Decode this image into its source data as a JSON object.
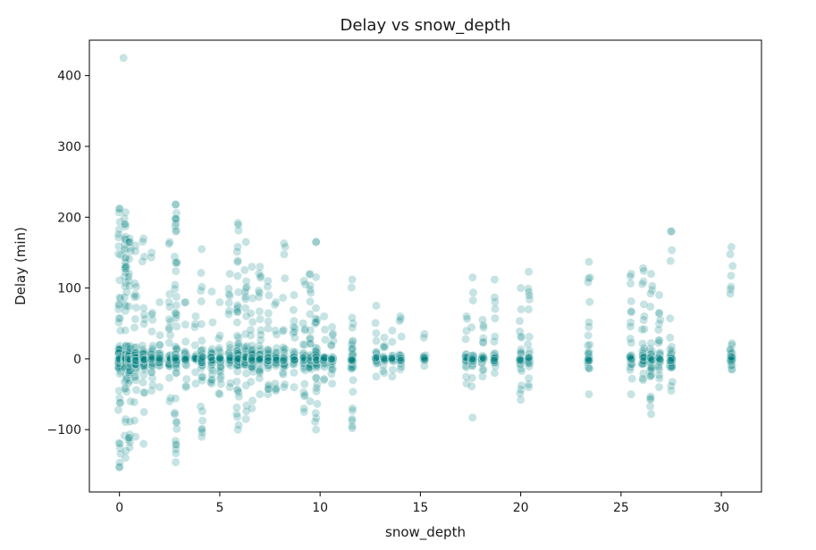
{
  "chart_data": {
    "type": "scatter",
    "title": "Delay vs snow_depth",
    "xlabel": "snow_depth",
    "ylabel": "Delay (min)",
    "xlim": [
      -1.5,
      32.0
    ],
    "ylim": [
      -188,
      450
    ],
    "xticks": [
      0,
      5,
      10,
      15,
      20,
      25,
      30
    ],
    "yticks": [
      -100,
      0,
      100,
      200,
      300,
      400
    ],
    "tick_labels_x": [
      "0",
      "5",
      "10",
      "15",
      "20",
      "25",
      "30"
    ],
    "tick_labels_y": [
      "−100",
      "0",
      "100",
      "200",
      "300",
      "400"
    ],
    "grid": false,
    "marker_color": "#00807f",
    "marker_alpha": 0.22,
    "columns": [
      {
        "x": 0.0,
        "min": -153,
        "max": 212,
        "n": 90
      },
      {
        "x": 0.3,
        "min": -140,
        "max": 207,
        "n": 70
      },
      {
        "x": 0.5,
        "min": -125,
        "max": 170,
        "n": 55
      },
      {
        "x": 0.8,
        "min": -110,
        "max": 160,
        "n": 45
      },
      {
        "x": 1.2,
        "min": -120,
        "max": 170,
        "n": 45
      },
      {
        "x": 1.6,
        "min": -45,
        "max": 150,
        "n": 25
      },
      {
        "x": 2.0,
        "min": -40,
        "max": 80,
        "n": 22
      },
      {
        "x": 2.5,
        "min": -60,
        "max": 165,
        "n": 30
      },
      {
        "x": 2.8,
        "min": -146,
        "max": 218,
        "n": 70
      },
      {
        "x": 3.3,
        "min": -40,
        "max": 80,
        "n": 18
      },
      {
        "x": 3.8,
        "min": -35,
        "max": 60,
        "n": 15
      },
      {
        "x": 4.1,
        "min": -110,
        "max": 155,
        "n": 32
      },
      {
        "x": 4.6,
        "min": -35,
        "max": 95,
        "n": 22
      },
      {
        "x": 5.0,
        "min": -50,
        "max": 80,
        "n": 22
      },
      {
        "x": 5.5,
        "min": -40,
        "max": 120,
        "n": 25
      },
      {
        "x": 5.9,
        "min": -100,
        "max": 192,
        "n": 70
      },
      {
        "x": 6.3,
        "min": -85,
        "max": 165,
        "n": 40
      },
      {
        "x": 6.6,
        "min": -70,
        "max": 130,
        "n": 40
      },
      {
        "x": 7.0,
        "min": -50,
        "max": 130,
        "n": 35
      },
      {
        "x": 7.4,
        "min": -50,
        "max": 110,
        "n": 25
      },
      {
        "x": 7.8,
        "min": -45,
        "max": 80,
        "n": 22
      },
      {
        "x": 8.2,
        "min": -40,
        "max": 163,
        "n": 22
      },
      {
        "x": 8.7,
        "min": -40,
        "max": 90,
        "n": 20
      },
      {
        "x": 9.2,
        "min": -75,
        "max": 110,
        "n": 25
      },
      {
        "x": 9.5,
        "min": -60,
        "max": 120,
        "n": 22
      },
      {
        "x": 9.8,
        "min": -100,
        "max": 165,
        "n": 45
      },
      {
        "x": 10.2,
        "min": -30,
        "max": 60,
        "n": 15
      },
      {
        "x": 10.6,
        "min": -35,
        "max": 45,
        "n": 15
      },
      {
        "x": 11.6,
        "min": -98,
        "max": 112,
        "n": 32
      },
      {
        "x": 12.8,
        "min": -25,
        "max": 75,
        "n": 14
      },
      {
        "x": 13.2,
        "min": -20,
        "max": 30,
        "n": 10
      },
      {
        "x": 13.6,
        "min": -25,
        "max": 40,
        "n": 10
      },
      {
        "x": 14.0,
        "min": -15,
        "max": 60,
        "n": 12
      },
      {
        "x": 15.2,
        "min": -10,
        "max": 35,
        "n": 10
      },
      {
        "x": 17.3,
        "min": -35,
        "max": 60,
        "n": 15
      },
      {
        "x": 17.6,
        "min": -83,
        "max": 115,
        "n": 18
      },
      {
        "x": 18.1,
        "min": -25,
        "max": 55,
        "n": 14
      },
      {
        "x": 18.7,
        "min": -20,
        "max": 112,
        "n": 18
      },
      {
        "x": 20.0,
        "min": -58,
        "max": 100,
        "n": 20
      },
      {
        "x": 20.4,
        "min": -40,
        "max": 123,
        "n": 18
      },
      {
        "x": 23.4,
        "min": -50,
        "max": 137,
        "n": 22
      },
      {
        "x": 25.5,
        "min": -50,
        "max": 120,
        "n": 22
      },
      {
        "x": 26.1,
        "min": -30,
        "max": 128,
        "n": 25
      },
      {
        "x": 26.5,
        "min": -78,
        "max": 120,
        "n": 28
      },
      {
        "x": 26.9,
        "min": -40,
        "max": 90,
        "n": 20
      },
      {
        "x": 27.5,
        "min": -45,
        "max": 180,
        "n": 30
      },
      {
        "x": 30.5,
        "min": -15,
        "max": 158,
        "n": 28
      }
    ],
    "outliers": [
      {
        "x": 0.2,
        "y": 425
      },
      {
        "x": 2.8,
        "y": 218
      },
      {
        "x": 27.5,
        "y": 180
      },
      {
        "x": 9.8,
        "y": 165
      },
      {
        "x": 0.0,
        "y": 212
      },
      {
        "x": 11.6,
        "y": -95
      }
    ]
  }
}
